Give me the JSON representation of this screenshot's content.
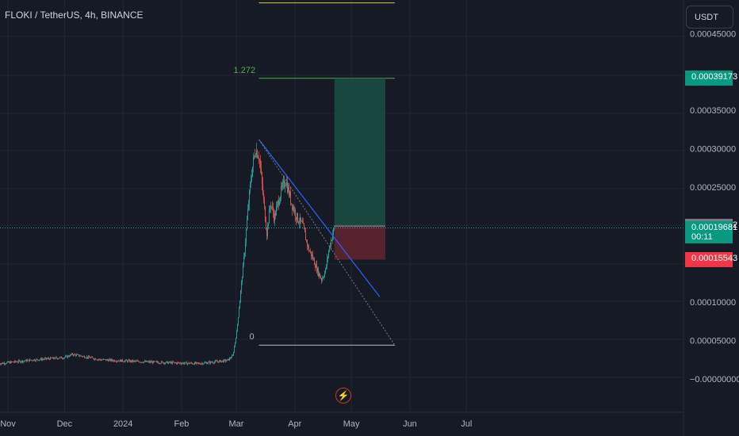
{
  "header": {
    "title": "FLOKI / TetherUS, 4h, BINANCE"
  },
  "currency": {
    "label": "USDT"
  },
  "fib": {
    "levels": [
      {
        "label": "1.272",
        "price": 0.00039173,
        "color": "#4caf50"
      },
      {
        "label": "0",
        "price": 4.4e-05,
        "color": "#b2b5be"
      }
    ],
    "top_level_price": 0.00049,
    "top_level_color": "#d4c84a"
  },
  "position": {
    "entry": 0.00019922,
    "target": 0.00039173,
    "stop": 0.00015543,
    "profit_color": "#1b4f45",
    "loss_color": "#5c2430"
  },
  "price_labels": {
    "target": "0.00039173",
    "entry": "0.00019922",
    "current": "0.00019681",
    "countdown": "00:11",
    "stop": "0.00015543"
  },
  "colors": {
    "up": "#26a69a",
    "down": "#ef5350",
    "trendline": "#2962ff",
    "current_line": "#26a69a"
  },
  "chart_data": {
    "type": "candlestick",
    "y_axis": {
      "ticks": [
        "0.00045000",
        "0.00035000",
        "0.00030000",
        "0.00025000",
        "0.00010000",
        "0.00005000",
        "−0.00000000"
      ],
      "tick_values": [
        0.00045,
        0.00035,
        0.0003,
        0.00025,
        0.0001,
        5e-05,
        0
      ],
      "ylim": [
        -1e-05,
        0.0005
      ]
    },
    "x_axis": {
      "ticks": [
        "Nov",
        "Dec",
        "2024",
        "Feb",
        "Mar",
        "Apr",
        "May",
        "Jun",
        "Jul"
      ],
      "tick_dates": [
        "2023-11-01",
        "2023-12-01",
        "2024-01-01",
        "2024-02-01",
        "2024-03-01",
        "2024-04-01",
        "2024-05-01",
        "2024-06-01",
        "2024-07-01"
      ]
    },
    "price_path": [
      [
        "2023-10-27",
        2e-05
      ],
      [
        "2023-11-15",
        2.5e-05
      ],
      [
        "2023-12-01",
        2.8e-05
      ],
      [
        "2023-12-05",
        3.2e-05
      ],
      [
        "2023-12-20",
        2.5e-05
      ],
      [
        "2024-01-15",
        2.2e-05
      ],
      [
        "2024-02-10",
        2e-05
      ],
      [
        "2024-02-25",
        2.4e-05
      ],
      [
        "2024-02-28",
        3e-05
      ],
      [
        "2024-03-01",
        6e-05
      ],
      [
        "2024-03-03",
        0.00011
      ],
      [
        "2024-03-05",
        0.00016
      ],
      [
        "2024-03-07",
        0.00022
      ],
      [
        "2024-03-09",
        0.00027
      ],
      [
        "2024-03-11",
        0.0003
      ],
      [
        "2024-03-13",
        0.00029
      ],
      [
        "2024-03-15",
        0.00024
      ],
      [
        "2024-03-17",
        0.00019
      ],
      [
        "2024-03-19",
        0.00023
      ],
      [
        "2024-03-21",
        0.00021
      ],
      [
        "2024-03-24",
        0.00024
      ],
      [
        "2024-03-27",
        0.00026
      ],
      [
        "2024-03-30",
        0.00023
      ],
      [
        "2024-04-02",
        0.00021
      ],
      [
        "2024-04-05",
        0.0002
      ],
      [
        "2024-04-08",
        0.00017
      ],
      [
        "2024-04-10",
        0.00016
      ],
      [
        "2024-04-13",
        0.00014
      ],
      [
        "2024-04-15",
        0.00013
      ],
      [
        "2024-04-17",
        0.00014
      ],
      [
        "2024-04-19",
        0.00017
      ],
      [
        "2024-04-21",
        0.00019
      ],
      [
        "2024-04-22",
        0.00019681
      ]
    ],
    "trendline": [
      [
        "2024-03-13",
        0.000312
      ],
      [
        "2024-05-16",
        0.000107
      ]
    ],
    "projection": [
      [
        "2024-03-13",
        0.000312
      ],
      [
        "2024-05-24",
        4.4e-05
      ]
    ]
  }
}
